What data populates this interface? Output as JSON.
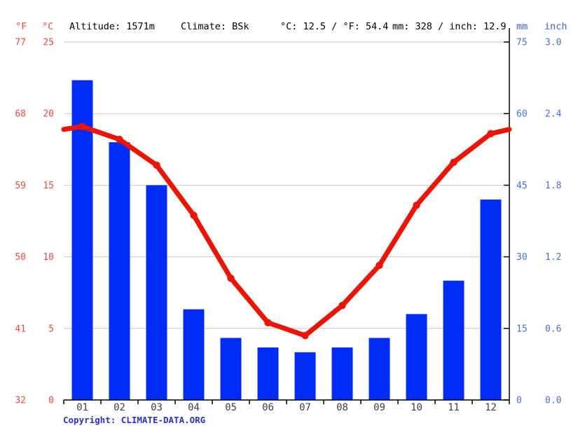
{
  "header": {
    "f_unit": "°F",
    "c_unit": "°C",
    "altitude": "Altitude: 1571m",
    "climate": "Climate: BSk",
    "temp_summary": "°C: 12.5 / °F: 54.4",
    "precip_summary": "mm: 328 / inch: 12.9",
    "mm_unit": "mm",
    "inch_unit": "inch"
  },
  "footer": {
    "copyright_label": "Copyright: ",
    "copyright_link": "CLIMATE-DATA.ORG"
  },
  "colors": {
    "bar_blue": "#002df5",
    "line_red": "#ec1505",
    "red_label": "#f04843",
    "blue_label": "#4a6ce2",
    "header_unit_blue": "#4059e8",
    "month_label": "#3f3f3f",
    "grid": "#c9c9c9",
    "axis": "#000000",
    "link_blue": "#2e2ecd"
  },
  "chart_data": {
    "type": "climograph (bar + line)",
    "title": "Climate chart — altitude 1571m, climate BSk, mean temp 12.5 °C / 54.4 °F, annual precipitation 328 mm / 12.9 inch",
    "months": [
      "01",
      "02",
      "03",
      "04",
      "05",
      "06",
      "07",
      "08",
      "09",
      "10",
      "11",
      "12"
    ],
    "series": [
      {
        "name": "Precipitation (mm)",
        "type": "bar",
        "values": [
          67,
          54,
          45,
          19,
          13,
          11,
          10,
          11,
          13,
          18,
          25,
          42
        ]
      },
      {
        "name": "Temperature (°C)",
        "type": "line",
        "values": [
          19.1,
          18.2,
          16.4,
          12.9,
          8.5,
          5.4,
          4.5,
          6.6,
          9.4,
          13.6,
          16.6,
          18.6
        ]
      }
    ],
    "edge_temp_c": 18.9,
    "axes": {
      "left_f_label": "°F",
      "left_c_label": "°C",
      "right_mm_label": "mm",
      "right_inch_label": "inch",
      "temp_c_ticks": [
        25,
        20,
        15,
        10,
        5,
        0
      ],
      "temp_f_ticks": [
        77,
        68,
        59,
        50,
        41,
        32
      ],
      "precip_mm_ticks": [
        75,
        60,
        45,
        30,
        15,
        0
      ],
      "precip_inch_ticks": [
        "3.0",
        "2.4",
        "1.8",
        "1.2",
        "0.6",
        "0.0"
      ],
      "temp_range_c": [
        0,
        25
      ],
      "precip_range_mm": [
        0,
        75
      ],
      "grid": "horizontal"
    },
    "legend_position": "none"
  }
}
